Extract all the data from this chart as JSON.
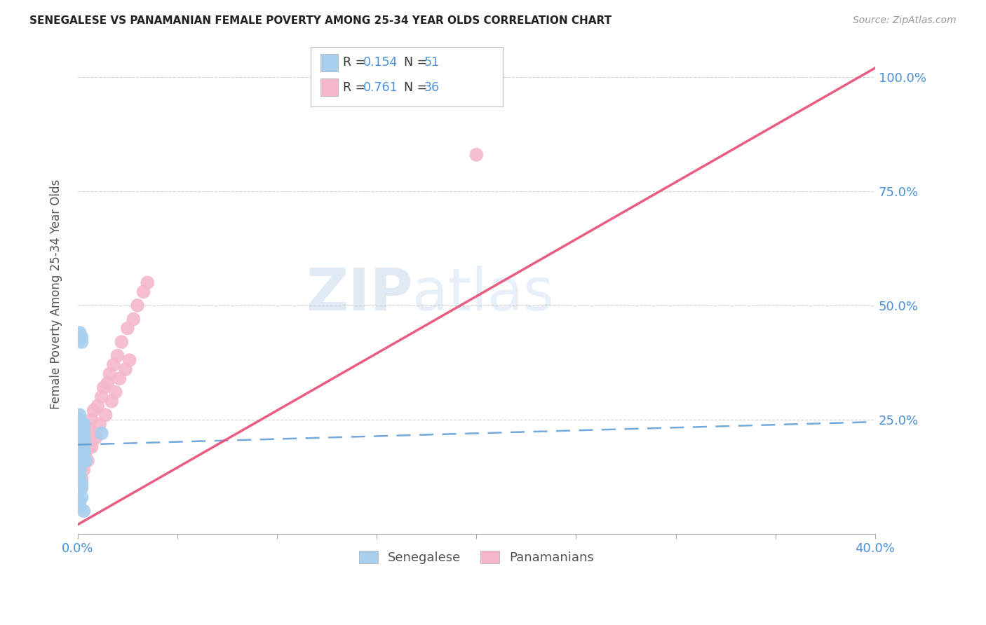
{
  "title": "SENEGALESE VS PANAMANIAN FEMALE POVERTY AMONG 25-34 YEAR OLDS CORRELATION CHART",
  "source": "Source: ZipAtlas.com",
  "ylabel": "Female Poverty Among 25-34 Year Olds",
  "xlim": [
    0.0,
    0.4
  ],
  "ylim": [
    0.0,
    1.05
  ],
  "xticks": [
    0.0,
    0.05,
    0.1,
    0.15,
    0.2,
    0.25,
    0.3,
    0.35,
    0.4
  ],
  "xticklabels": [
    "0.0%",
    "",
    "",
    "",
    "",
    "",
    "",
    "",
    "40.0%"
  ],
  "ytick_positions": [
    0.0,
    0.25,
    0.5,
    0.75,
    1.0
  ],
  "yticklabels": [
    "",
    "25.0%",
    "50.0%",
    "75.0%",
    "100.0%"
  ],
  "blue_color": "#A8CFEE",
  "pink_color": "#F5B8CB",
  "blue_line_color": "#5B9BD5",
  "pink_line_color": "#E8547A",
  "watermark_zip": "ZIP",
  "watermark_atlas": "atlas",
  "legend_r1": "R = 0.154",
  "legend_n1": "N = 51",
  "legend_r2": "R = 0.761",
  "legend_n2": "N = 36",
  "senegalese_x": [
    0.001,
    0.002,
    0.001,
    0.003,
    0.002,
    0.001,
    0.003,
    0.002,
    0.004,
    0.002,
    0.001,
    0.003,
    0.001,
    0.002,
    0.001,
    0.003,
    0.002,
    0.001,
    0.002,
    0.003,
    0.001,
    0.002,
    0.003,
    0.001,
    0.002,
    0.001,
    0.003,
    0.002,
    0.001,
    0.002,
    0.001,
    0.012,
    0.001,
    0.002,
    0.003,
    0.001,
    0.002,
    0.001,
    0.003,
    0.002,
    0.001,
    0.002,
    0.003,
    0.001,
    0.002,
    0.003,
    0.001,
    0.002,
    0.001,
    0.003,
    0.002
  ],
  "senegalese_y": [
    0.2,
    0.22,
    0.15,
    0.17,
    0.19,
    0.21,
    0.18,
    0.23,
    0.16,
    0.24,
    0.14,
    0.2,
    0.22,
    0.19,
    0.21,
    0.18,
    0.17,
    0.13,
    0.16,
    0.23,
    0.44,
    0.43,
    0.2,
    0.25,
    0.21,
    0.19,
    0.22,
    0.18,
    0.17,
    0.2,
    0.22,
    0.22,
    0.06,
    0.23,
    0.19,
    0.15,
    0.42,
    0.14,
    0.24,
    0.16,
    0.12,
    0.2,
    0.18,
    0.26,
    0.08,
    0.05,
    0.07,
    0.1,
    0.13,
    0.21,
    0.11
  ],
  "panamanian_x": [
    0.002,
    0.003,
    0.004,
    0.005,
    0.006,
    0.007,
    0.008,
    0.01,
    0.012,
    0.013,
    0.015,
    0.016,
    0.018,
    0.02,
    0.022,
    0.025,
    0.028,
    0.03,
    0.033,
    0.035,
    0.002,
    0.003,
    0.005,
    0.007,
    0.009,
    0.011,
    0.014,
    0.017,
    0.019,
    0.021,
    0.024,
    0.026,
    0.2,
    0.004,
    0.006,
    0.008
  ],
  "panamanian_y": [
    0.15,
    0.18,
    0.2,
    0.22,
    0.23,
    0.25,
    0.27,
    0.28,
    0.3,
    0.32,
    0.33,
    0.35,
    0.37,
    0.39,
    0.42,
    0.45,
    0.47,
    0.5,
    0.53,
    0.55,
    0.12,
    0.14,
    0.16,
    0.19,
    0.21,
    0.24,
    0.26,
    0.29,
    0.31,
    0.34,
    0.36,
    0.38,
    0.83,
    0.17,
    0.19,
    0.22
  ],
  "blue_trendline_x": [
    0.0,
    0.4
  ],
  "blue_trendline_y": [
    0.195,
    0.245
  ],
  "pink_trendline_x": [
    0.0,
    0.4
  ],
  "pink_trendline_y": [
    0.02,
    1.02
  ]
}
